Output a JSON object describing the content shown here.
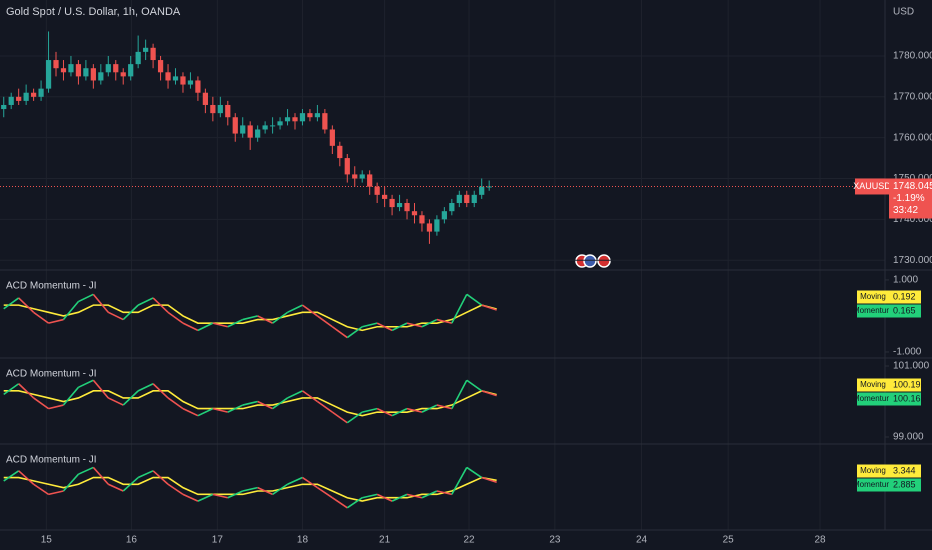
{
  "chart_data": [
    {
      "type": "candlestick",
      "title": "Gold Spot / U.S. Dollar, 1h, OANDA",
      "y_axis_label": "USD",
      "symbol": "XAUUSD",
      "change_label": "-1.19%",
      "countdown": "33:42",
      "up_color": "#26a69a",
      "down_color": "#ef5350",
      "grid": true,
      "xlim": [
        -0.5,
        118
      ],
      "xticks": [
        {
          "value": 5.7,
          "label": "15"
        },
        {
          "value": 17.1,
          "label": "16"
        },
        {
          "value": 28.6,
          "label": "17"
        },
        {
          "value": 40,
          "label": "18"
        },
        {
          "value": 51,
          "label": "21"
        },
        {
          "value": 62.3,
          "label": "22"
        },
        {
          "value": 73.8,
          "label": "23"
        },
        {
          "value": 85.4,
          "label": "24"
        },
        {
          "value": 97,
          "label": "25"
        },
        {
          "value": 109.3,
          "label": "28"
        }
      ],
      "ylim": [
        1727.6,
        1793.7
      ],
      "yticks": [
        {
          "value": 1730,
          "label": "1730.000"
        },
        {
          "value": 1740,
          "label": "1740.000"
        },
        {
          "value": 1750,
          "label": "1750.000"
        },
        {
          "value": 1760,
          "label": "1760.000"
        },
        {
          "value": 1770,
          "label": "1770.000"
        },
        {
          "value": 1780,
          "label": "1780.000"
        }
      ],
      "open": [
        1767,
        1768,
        1770,
        1769,
        1771,
        1770,
        1772,
        1779,
        1777,
        1776,
        1778,
        1775,
        1777,
        1774,
        1776,
        1778,
        1776,
        1775,
        1778,
        1781,
        1782,
        1779,
        1776,
        1774,
        1775,
        1773,
        1774,
        1771,
        1768,
        1766,
        1768,
        1765,
        1761,
        1763,
        1760,
        1762,
        1763,
        1763,
        1764,
        1765,
        1764,
        1766,
        1765,
        1766,
        1762,
        1758,
        1755,
        1751,
        1750,
        1751,
        1748,
        1746,
        1745,
        1743,
        1744,
        1742,
        1741,
        1739,
        1737,
        1740,
        1742,
        1744,
        1746,
        1744,
        1746,
        1748
      ],
      "high": [
        1770,
        1771,
        1772,
        1773,
        1772,
        1774,
        1786,
        1781,
        1779,
        1780,
        1779,
        1779,
        1778,
        1778,
        1780,
        1779,
        1777,
        1780,
        1785,
        1784,
        1783,
        1780,
        1778,
        1777,
        1776,
        1776,
        1775,
        1772,
        1770,
        1770,
        1769,
        1766,
        1765,
        1764,
        1763,
        1764,
        1765,
        1765,
        1767,
        1766,
        1767,
        1767,
        1768,
        1767,
        1763,
        1759,
        1756,
        1753,
        1752,
        1752,
        1749,
        1748,
        1746,
        1746,
        1745,
        1744,
        1742,
        1740,
        1741,
        1743,
        1745,
        1747,
        1747,
        1747,
        1750,
        1749.5
      ],
      "low": [
        1765,
        1767,
        1768,
        1768,
        1769,
        1769,
        1771,
        1775,
        1774,
        1775,
        1773,
        1774,
        1772,
        1773,
        1775,
        1774,
        1773,
        1774,
        1777,
        1779,
        1777,
        1774,
        1772,
        1773,
        1771,
        1772,
        1769,
        1766,
        1764,
        1765,
        1763,
        1759,
        1760,
        1757,
        1759,
        1761,
        1761,
        1762,
        1763,
        1762,
        1763,
        1764,
        1764,
        1761,
        1756,
        1753,
        1749,
        1748,
        1749,
        1746,
        1744,
        1743,
        1741,
        1742,
        1740,
        1739,
        1737,
        1734,
        1736,
        1739,
        1741,
        1743,
        1743,
        1743,
        1745,
        1747
      ],
      "close": [
        1768,
        1770,
        1769,
        1771,
        1770,
        1772,
        1779,
        1777,
        1776,
        1778,
        1775,
        1777,
        1774,
        1776,
        1778,
        1776,
        1775,
        1778,
        1781,
        1782,
        1779,
        1776,
        1774,
        1775,
        1773,
        1774,
        1771,
        1768,
        1766,
        1768,
        1765,
        1761,
        1763,
        1760,
        1762,
        1763,
        1763,
        1764,
        1765,
        1764,
        1766,
        1765,
        1766,
        1762,
        1758,
        1755,
        1751,
        1750,
        1751,
        1748,
        1746,
        1745,
        1743,
        1744,
        1742,
        1741,
        1739,
        1737,
        1740,
        1742,
        1744,
        1746,
        1744,
        1746,
        1748,
        1748.045
      ]
    },
    {
      "type": "line",
      "title": "ACD Momentum - JI",
      "ylim": [
        -1.14,
        1.22
      ],
      "yticks": [
        {
          "value": 1,
          "label": "1.000"
        },
        {
          "value": -1,
          "label": "-1.000"
        }
      ],
      "series": [
        {
          "name": "Moving",
          "color": "#ffeb3b",
          "values": [
            0.3,
            0.3,
            0.2,
            0.1,
            0,
            0.1,
            0.3,
            0.3,
            0.1,
            0.1,
            0.3,
            0.3,
            0,
            -0.2,
            -0.2,
            -0.2,
            -0.2,
            -0.1,
            -0.1,
            0,
            0.1,
            0.1,
            -0.1,
            -0.3,
            -0.4,
            -0.3,
            -0.3,
            -0.3,
            -0.2,
            -0.2,
            -0.1,
            0.1,
            0.3,
            0.192
          ]
        },
        {
          "name": "Momentum",
          "color": "#22d07a",
          "down_color": "#ef5350",
          "values": [
            0.2,
            0.5,
            0.1,
            -0.2,
            -0.1,
            0.4,
            0.6,
            0.1,
            -0.1,
            0.3,
            0.5,
            0.1,
            -0.2,
            -0.4,
            -0.2,
            -0.3,
            -0.1,
            0,
            -0.2,
            0.1,
            0.3,
            0,
            -0.3,
            -0.6,
            -0.3,
            -0.2,
            -0.4,
            -0.2,
            -0.3,
            -0.1,
            -0.2,
            0.6,
            0.3,
            0.165
          ]
        }
      ]
    },
    {
      "type": "line",
      "title": "ACD Momentum - JI",
      "ylim": [
        98.83,
        101.17
      ],
      "yticks": [
        {
          "value": 101,
          "label": "101.000"
        },
        {
          "value": 99,
          "label": "99.000"
        }
      ],
      "series": [
        {
          "name": "Moving",
          "color": "#ffeb3b",
          "values": [
            100.3,
            100.3,
            100.2,
            100.1,
            100,
            100.1,
            100.3,
            100.3,
            100.1,
            100.1,
            100.3,
            100.3,
            100,
            99.8,
            99.8,
            99.8,
            99.8,
            99.9,
            99.9,
            100,
            100.1,
            100.1,
            99.9,
            99.7,
            99.6,
            99.7,
            99.7,
            99.7,
            99.8,
            99.8,
            99.9,
            100.1,
            100.3,
            100.192
          ]
        },
        {
          "name": "Momentum",
          "color": "#22d07a",
          "down_color": "#ef5350",
          "values": [
            100.2,
            100.5,
            100.1,
            99.8,
            99.9,
            100.4,
            100.6,
            100.1,
            99.9,
            100.3,
            100.5,
            100.1,
            99.8,
            99.6,
            99.8,
            99.7,
            99.9,
            100,
            99.8,
            100.1,
            100.3,
            100,
            99.7,
            99.4,
            99.7,
            99.8,
            99.6,
            99.8,
            99.7,
            99.9,
            99.8,
            100.6,
            100.3,
            100.165
          ]
        }
      ]
    },
    {
      "type": "line",
      "title": "ACD Momentum - JI",
      "ylim": [
        -8,
        11.5
      ],
      "series": [
        {
          "name": "Moving",
          "color": "#ffeb3b",
          "values": [
            4,
            4,
            3.2,
            2.4,
            1.6,
            2.4,
            4,
            4,
            2.4,
            2.4,
            4,
            4,
            1.6,
            0,
            0,
            0,
            0,
            0.8,
            0.8,
            1.6,
            2.4,
            2.4,
            0.8,
            -0.8,
            -1.6,
            -0.8,
            -0.8,
            -0.8,
            0,
            0,
            0.8,
            2.4,
            4,
            3.344
          ]
        },
        {
          "name": "Momentum",
          "color": "#22d07a",
          "down_color": "#ef5350",
          "values": [
            3.2,
            5.6,
            2.4,
            0,
            0.8,
            4.8,
            6.4,
            2.4,
            0.8,
            4,
            5.6,
            2.4,
            0,
            -1.6,
            0,
            -0.8,
            0.8,
            1.6,
            0,
            2.4,
            4,
            1.6,
            -0.8,
            -3.2,
            -0.8,
            0,
            -1.6,
            0,
            -0.8,
            0.8,
            0,
            6.4,
            4,
            2.885
          ]
        }
      ]
    }
  ]
}
